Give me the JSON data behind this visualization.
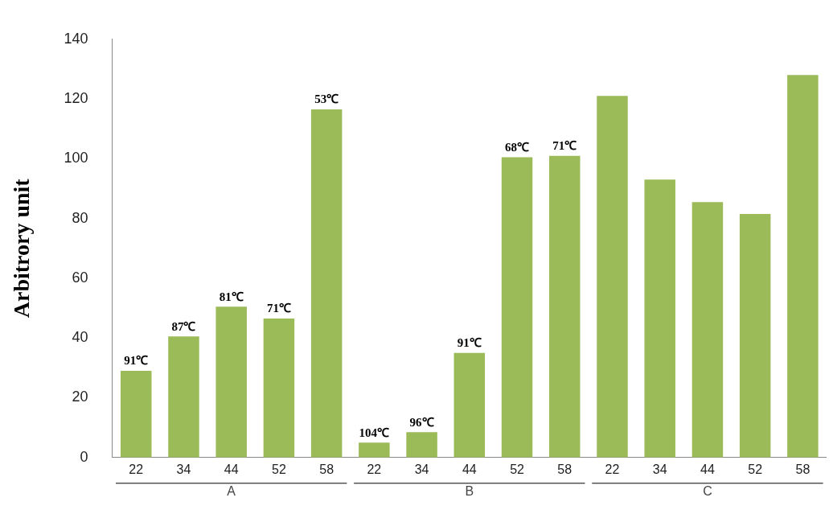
{
  "chart_data": {
    "type": "bar",
    "ylabel": "Arbitrory unit",
    "categories": [
      "22",
      "34",
      "44",
      "52",
      "58",
      "22",
      "34",
      "44",
      "52",
      "58",
      "22",
      "34",
      "44",
      "52",
      "58"
    ],
    "values": [
      29,
      40.5,
      50.5,
      46.5,
      116.5,
      5,
      8.5,
      35,
      100.5,
      101,
      121,
      93,
      85.5,
      81.5,
      128
    ],
    "color": "#9bbb59",
    "ylim": [
      0,
      140
    ],
    "yticks": [
      0,
      20,
      40,
      60,
      80,
      100,
      120,
      140
    ],
    "grid": false,
    "legend": false,
    "annotations": [
      "A",
      "B",
      "C",
      {
        "text": "91℃",
        "y": 29
      },
      {
        "text": "87℃",
        "y": 40.5
      },
      {
        "text": "81℃",
        "y": 50.5
      },
      {
        "text": "71℃",
        "y": 46.5
      },
      {
        "text": "53℃",
        "y": 116.5
      },
      {
        "text": "104℃",
        "y": 5
      },
      {
        "text": "96℃",
        "y": 8.5
      },
      {
        "text": "91℃",
        "y": 35
      },
      {
        "text": "68℃",
        "y": 100.5
      },
      {
        "text": "71℃",
        "y": 101
      }
    ]
  }
}
